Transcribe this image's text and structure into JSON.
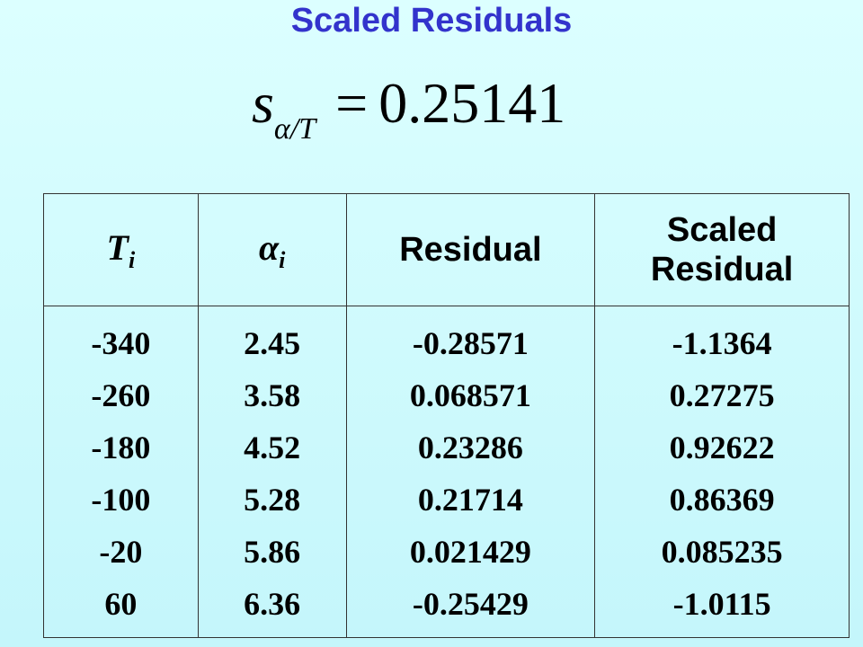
{
  "title": "Scaled Residuals",
  "formula": {
    "symbol": "s",
    "subscript": "α/T",
    "operator": "=",
    "value": "0.25141"
  },
  "table": {
    "headers": [
      {
        "main": "T",
        "sub": "i"
      },
      {
        "main": "α",
        "sub": "i"
      },
      {
        "main": "Residual"
      },
      {
        "main": "Scaled Residual"
      }
    ],
    "rows": [
      [
        "-340",
        "2.45",
        "-0.28571",
        "-1.1364"
      ],
      [
        "-260",
        "3.58",
        "0.068571",
        "0.27275"
      ],
      [
        "-180",
        "4.52",
        "0.23286",
        "0.92622"
      ],
      [
        "-100",
        "5.28",
        "0.21714",
        "0.86369"
      ],
      [
        "-20",
        "5.86",
        "0.021429",
        "0.085235"
      ],
      [
        "60",
        "6.36",
        "-0.25429",
        "-1.0115"
      ]
    ]
  }
}
